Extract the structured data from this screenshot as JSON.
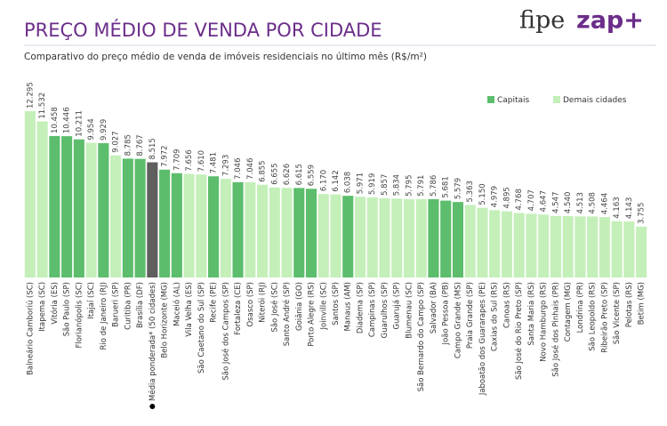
{
  "logo": {
    "left": "fipe",
    "right": "zap+"
  },
  "chart_data": {
    "type": "bar",
    "title": "PREÇO MÉDIO DE VENDA POR CIDADE",
    "subtitle": "Comparativo do preço médio de venda de imóveis residenciais no último mês (R$/m²)",
    "categories": [
      "Balneário Camboriú (SC)",
      "Itapema (SC)",
      "Vitória (ES)",
      "São Paulo (SP)",
      "Florianópolis (SC)",
      "Itajaí (SC)",
      "Rio de Janeiro (RJ)",
      "Barueri (SP)",
      "Curitiba (PR)",
      "Brasília (DF)",
      "Média ponderada* (50 cidades)",
      "Belo Horizonte (MG)",
      "Maceió (AL)",
      "Vila Velha (ES)",
      "São Caetano do Sul (SP)",
      "Recife (PE)",
      "São José dos Campos (SP)",
      "Fortaleza (CE)",
      "Osasco (SP)",
      "Niterói (RJ)",
      "São José (SC)",
      "Santo André (SP)",
      "Goiânia (GO)",
      "Porto Alegre (RS)",
      "Joinville (SC)",
      "Santos (SP)",
      "Manaus (AM)",
      "Diadema (SP)",
      "Campinas (SP)",
      "Guarulhos (SP)",
      "Guarujá (SP)",
      "Blumenau (SC)",
      "São Bernardo do Campo (SP)",
      "Salvador (BA)",
      "João Pessoa (PB)",
      "Campo Grande (MS)",
      "Praia Grande (SP)",
      "Jaboatão dos Guararapes (PE)",
      "Caxias do Sul (RS)",
      "Canoas (RS)",
      "São José do Rio Preto (SP)",
      "Santa Maria (RS)",
      "Novo Hamburgo (RS)",
      "São José dos Pinhais (PR)",
      "Contagem (MG)",
      "Londrina (PR)",
      "São Leopoldo (RS)",
      "Ribeirão Preto (SP)",
      "São Vicente (SP)",
      "Pelotas (RS)",
      "Betim (MG)"
    ],
    "values": [
      12295,
      11532,
      10458,
      10446,
      10211,
      9954,
      9929,
      9027,
      8785,
      8767,
      8515,
      7972,
      7709,
      7656,
      7610,
      7481,
      7293,
      7046,
      7046,
      6855,
      6655,
      6626,
      6615,
      6559,
      6170,
      6142,
      6038,
      5971,
      5919,
      5857,
      5834,
      5795,
      5791,
      5786,
      5681,
      5579,
      5363,
      5150,
      4979,
      4895,
      4768,
      4707,
      4647,
      4547,
      4540,
      4513,
      4508,
      4464,
      4163,
      4143,
      3755
    ],
    "value_labels": [
      "12.295",
      "11.532",
      "10.458",
      "10.446",
      "10.211",
      "9.954",
      "9.929",
      "9.027",
      "8.785",
      "8.767",
      "8.515",
      "7.972",
      "7.709",
      "7.656",
      "7.610",
      "7.481",
      "7.293",
      "7.046",
      "7.046",
      "6.855",
      "6.655",
      "6.626",
      "6.615",
      "6.559",
      "6.170",
      "6.142",
      "6.038",
      "5.971",
      "5.919",
      "5.857",
      "5.834",
      "5.795",
      "5.791",
      "5.786",
      "5.681",
      "5.579",
      "5.363",
      "5.150",
      "4.979",
      "4.895",
      "4.768",
      "4.707",
      "4.647",
      "4.547",
      "4.540",
      "4.513",
      "4.508",
      "4.464",
      "4.163",
      "4.143",
      "3.755"
    ],
    "colors": [
      "#c4efb9",
      "#c4efb9",
      "#5cbd6c",
      "#5cbd6c",
      "#5cbd6c",
      "#c4efb9",
      "#5cbd6c",
      "#c4efb9",
      "#5cbd6c",
      "#5cbd6c",
      "#5f5f5f",
      "#5cbd6c",
      "#5cbd6c",
      "#c4efb9",
      "#c4efb9",
      "#5cbd6c",
      "#c4efb9",
      "#5cbd6c",
      "#c4efb9",
      "#c4efb9",
      "#c4efb9",
      "#c4efb9",
      "#5cbd6c",
      "#5cbd6c",
      "#c4efb9",
      "#c4efb9",
      "#5cbd6c",
      "#c4efb9",
      "#c4efb9",
      "#c4efb9",
      "#c4efb9",
      "#c4efb9",
      "#c4efb9",
      "#5cbd6c",
      "#5cbd6c",
      "#5cbd6c",
      "#c4efb9",
      "#c4efb9",
      "#c4efb9",
      "#c4efb9",
      "#c4efb9",
      "#c4efb9",
      "#c4efb9",
      "#c4efb9",
      "#c4efb9",
      "#c4efb9",
      "#c4efb9",
      "#c4efb9",
      "#c4efb9",
      "#c4efb9",
      "#c4efb9"
    ],
    "legend": [
      {
        "name": "Capitais",
        "color": "#5cbd6c"
      },
      {
        "name": "Demais cidades",
        "color": "#c4efb9"
      }
    ]
  }
}
